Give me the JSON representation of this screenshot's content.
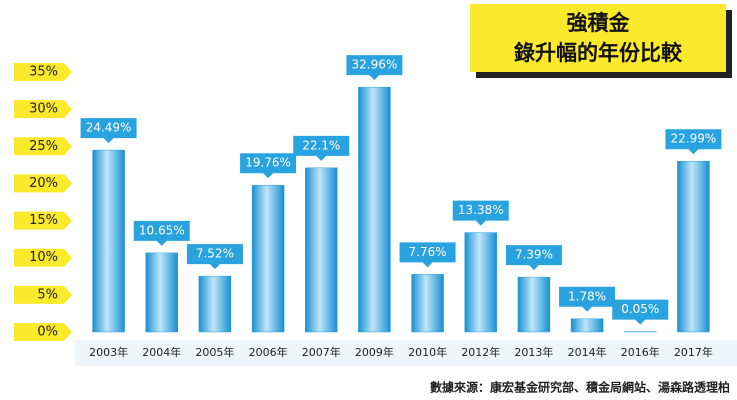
{
  "chart_data": {
    "type": "bar",
    "title": [
      "強積金",
      "錄升幅的年份比較"
    ],
    "source": "數據來源：康宏基金研究部、積金局網站、湯森路透理柏",
    "categories": [
      "2003年",
      "2004年",
      "2005年",
      "2006年",
      "2007年",
      "2009年",
      "2010年",
      "2012年",
      "2013年",
      "2014年",
      "2016年",
      "2017年"
    ],
    "values": [
      24.49,
      10.65,
      7.52,
      19.76,
      22.1,
      32.96,
      7.76,
      13.38,
      7.39,
      1.78,
      0.05,
      22.99
    ],
    "value_labels": [
      "24.49%",
      "10.65%",
      "7.52%",
      "19.76%",
      "22.1%",
      "32.96%",
      "7.76%",
      "13.38%",
      "7.39%",
      "1.78%",
      "0.05%",
      "22.99%"
    ],
    "color": "#29a3e0",
    "ylim": [
      0,
      35
    ],
    "yticks": [
      {
        "value": 0,
        "label": "0%"
      },
      {
        "value": 5,
        "label": "5%"
      },
      {
        "value": 10,
        "label": "10%"
      },
      {
        "value": 15,
        "label": "15%"
      },
      {
        "value": 20,
        "label": "20%"
      },
      {
        "value": 25,
        "label": "25%"
      },
      {
        "value": 30,
        "label": "30%"
      },
      {
        "value": 35,
        "label": "35%"
      }
    ]
  }
}
